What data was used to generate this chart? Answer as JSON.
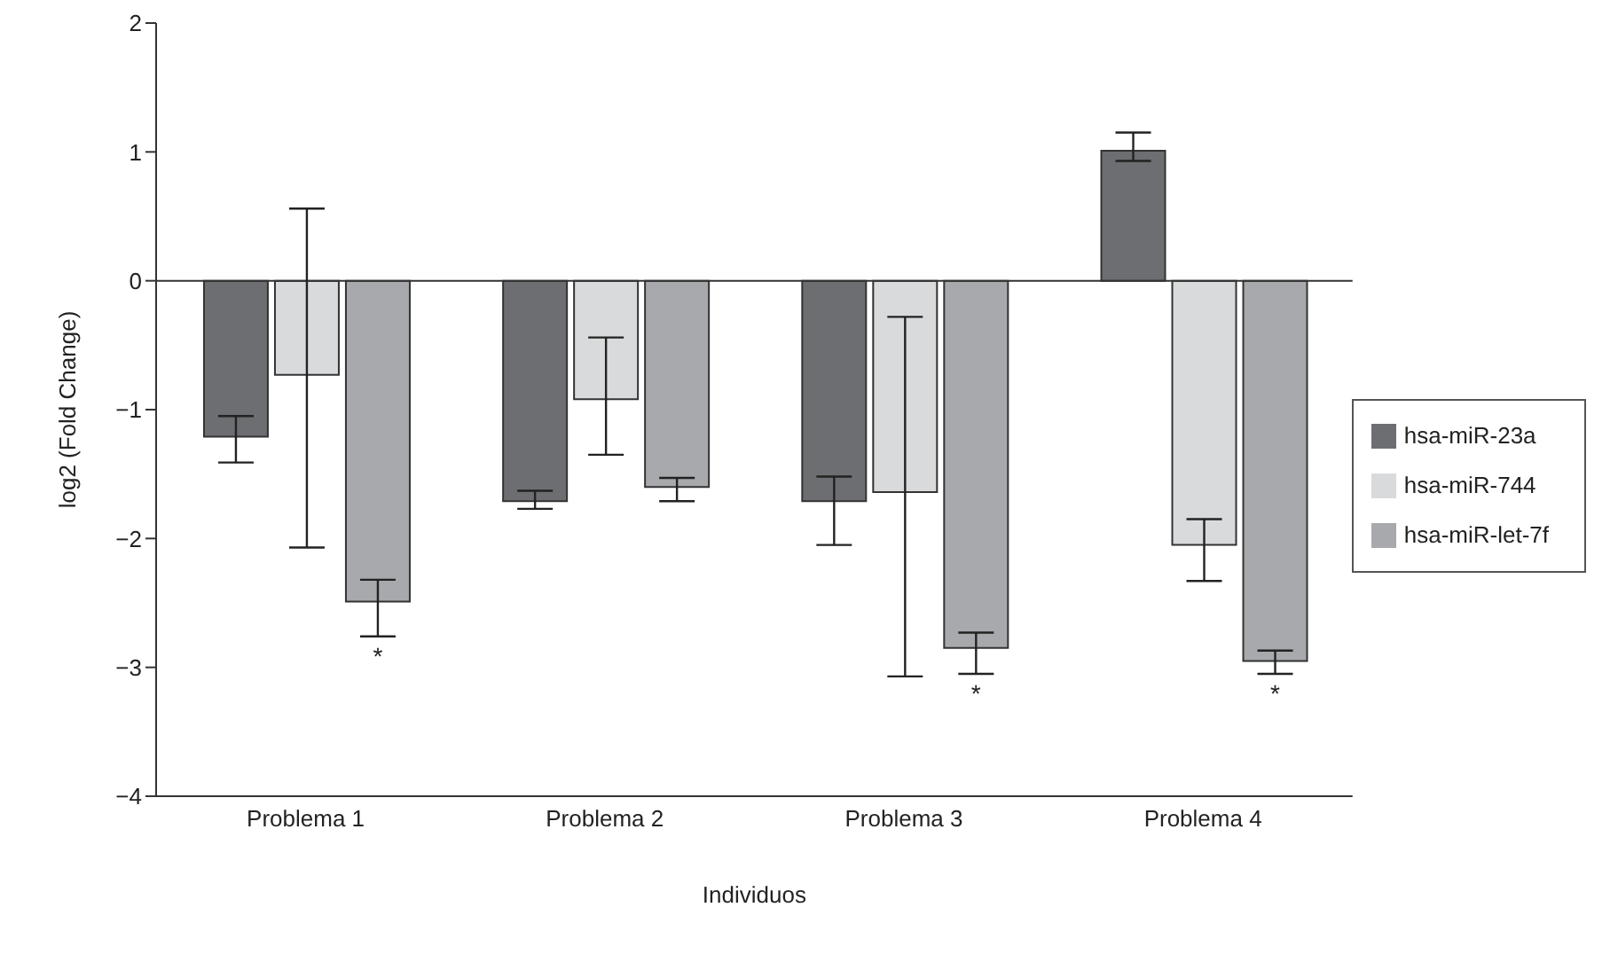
{
  "chart_data": {
    "type": "bar",
    "xlabel": "Individuos",
    "ylabel": "log2 (Fold Change)",
    "categories": [
      "Problema 1",
      "Problema 2",
      "Problema 3",
      "Problema 4"
    ],
    "series": [
      {
        "name": "hsa-miR-23a",
        "color": "#6d6e71",
        "values": [
          -1.21,
          -1.71,
          -1.71,
          1.01
        ],
        "errors": [
          [
            -1.41,
            -1.05
          ],
          [
            -1.77,
            -1.63
          ],
          [
            -2.05,
            -1.52
          ],
          [
            0.93,
            1.15
          ]
        ]
      },
      {
        "name": "hsa-miR-744",
        "color": "#d9dadb",
        "values": [
          -0.73,
          -0.92,
          -1.64,
          -2.05
        ],
        "errors": [
          [
            -2.07,
            0.56
          ],
          [
            -1.35,
            -0.44
          ],
          [
            -3.07,
            -0.28
          ],
          [
            -2.33,
            -1.85
          ]
        ]
      },
      {
        "name": "hsa-miR-let-7f",
        "color": "#a7a9ac",
        "values": [
          -2.49,
          -1.6,
          -2.85,
          -2.95
        ],
        "errors": [
          [
            -2.76,
            -2.32
          ],
          [
            -1.71,
            -1.53
          ],
          [
            -3.05,
            -2.73
          ],
          [
            -3.05,
            -2.87
          ]
        ],
        "value_labels": [
          "*",
          null,
          "*",
          "*"
        ]
      }
    ],
    "ylim": [
      -4,
      2
    ],
    "yticks": [
      -4,
      -3,
      -2,
      -1,
      0,
      1,
      2
    ],
    "grid": false,
    "legend": "right",
    "ref_lines": [
      {
        "axis": "y",
        "value": 0
      }
    ]
  }
}
